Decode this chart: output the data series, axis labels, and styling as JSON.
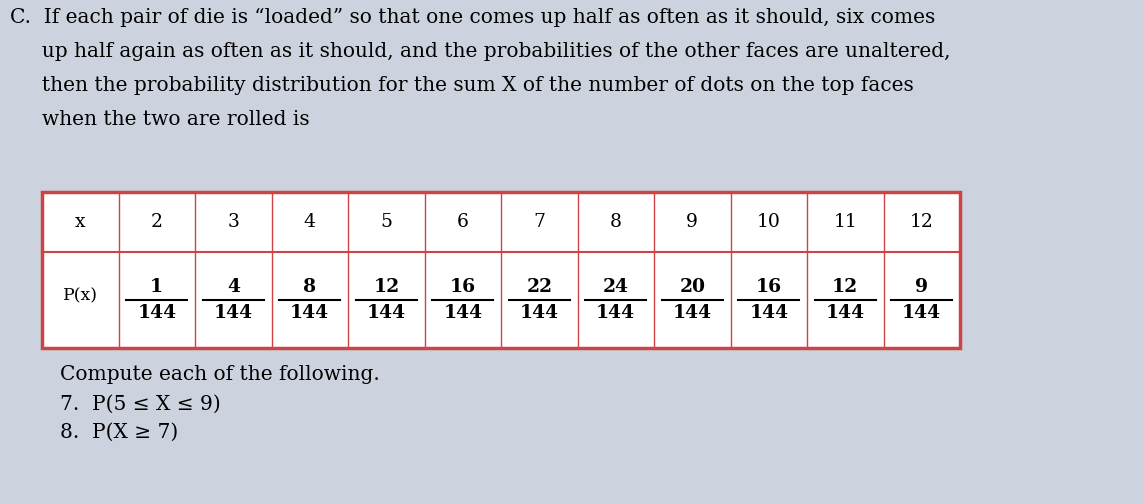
{
  "background_color": "#cdd3de",
  "title_line1": "C.  If each pair of die is “loaded” so that one comes up half as often as it should, six comes",
  "title_line2": "     up half again as often as it should, and the probabilities of the other faces are unaltered,",
  "title_line3": "     then the probability distribution for the sum X of the number of dots on the top faces",
  "title_line4": "     when the two are rolled is",
  "x_values": [
    "x",
    "2",
    "3",
    "4",
    "5",
    "6",
    "7",
    "8",
    "9",
    "10",
    "11",
    "12"
  ],
  "numerators": [
    "",
    "1",
    "4",
    "8",
    "12",
    "16",
    "22",
    "24",
    "20",
    "16",
    "12",
    "9"
  ],
  "denominator": "144",
  "px_label": "P(x)",
  "table_border_color": "#cc4444",
  "compute_text": "Compute each of the following.",
  "item7": "7.  P(5 ≤ X ≤ 9)",
  "item8": "8.  P(X ≥ 7)"
}
